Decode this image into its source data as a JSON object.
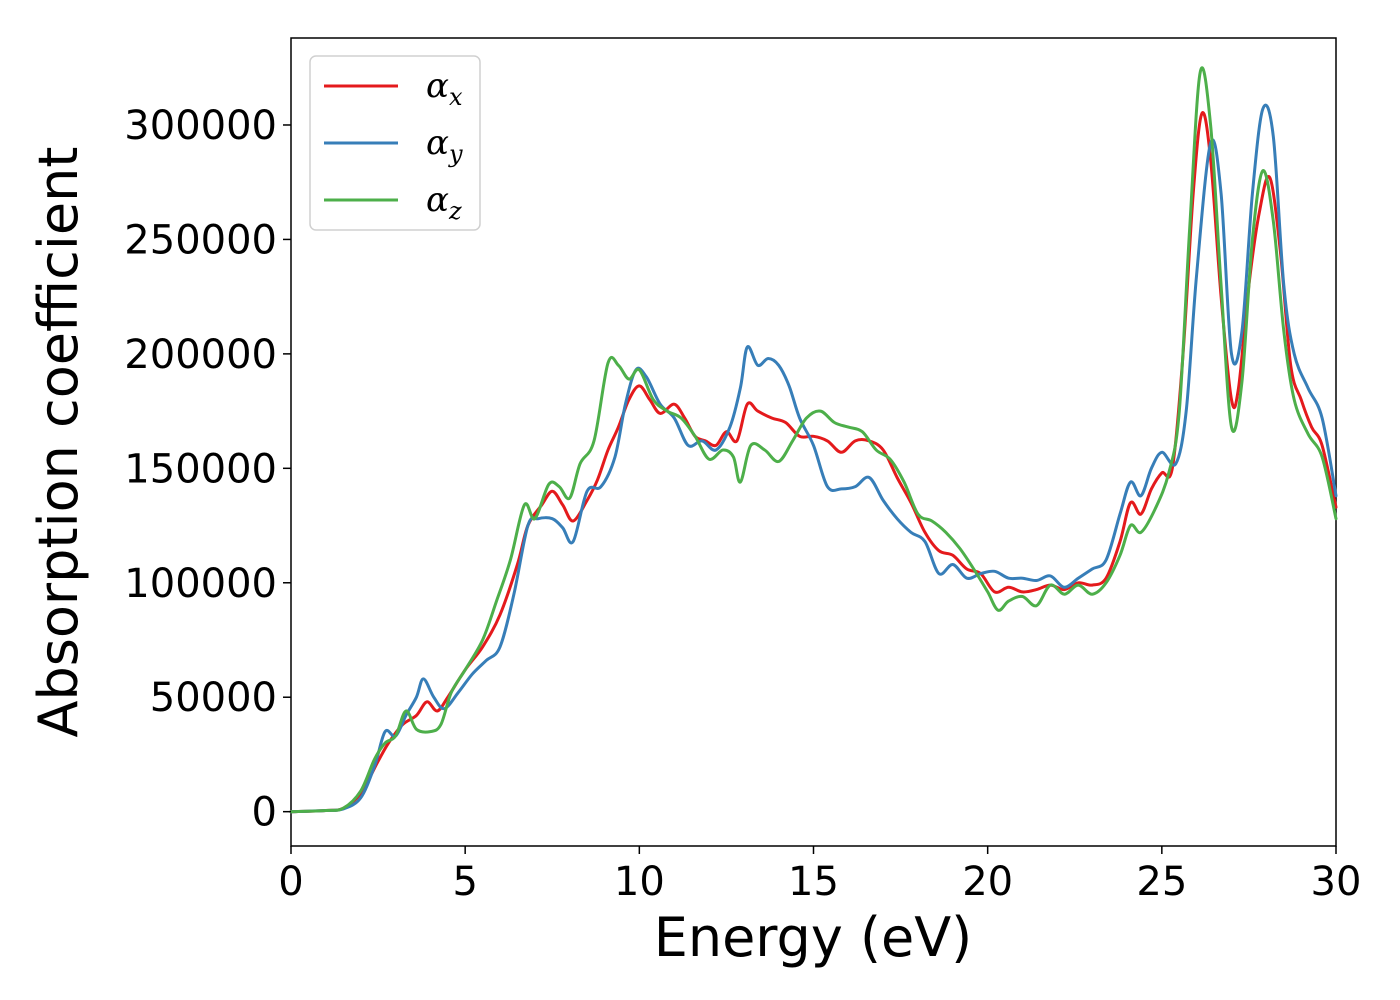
{
  "chart_data": {
    "type": "line",
    "title": "",
    "xlabel": "Energy (eV)",
    "ylabel": "Absorption coefficient",
    "xlim": [
      0,
      30
    ],
    "ylim": [
      -15000,
      338000
    ],
    "xticks": [
      0,
      5,
      10,
      15,
      20,
      25,
      30
    ],
    "yticks": [
      0,
      50000,
      100000,
      150000,
      200000,
      250000,
      300000
    ],
    "grid": false,
    "legend": "top-left",
    "series": [
      {
        "name": "α",
        "name_sub": "x",
        "color": "#e41a1c",
        "points": [
          [
            0,
            0
          ],
          [
            1,
            500
          ],
          [
            1.5,
            1500
          ],
          [
            2,
            8000
          ],
          [
            2.5,
            22000
          ],
          [
            2.8,
            30000
          ],
          [
            3.2,
            38000
          ],
          [
            3.6,
            42000
          ],
          [
            3.9,
            48000
          ],
          [
            4.2,
            44000
          ],
          [
            4.5,
            50000
          ],
          [
            5,
            62000
          ],
          [
            5.5,
            72000
          ],
          [
            6,
            86000
          ],
          [
            6.5,
            108000
          ],
          [
            6.8,
            125000
          ],
          [
            7.2,
            134000
          ],
          [
            7.5,
            140000
          ],
          [
            7.8,
            134000
          ],
          [
            8.1,
            127000
          ],
          [
            8.5,
            136000
          ],
          [
            8.8,
            145000
          ],
          [
            9.1,
            158000
          ],
          [
            9.4,
            168000
          ],
          [
            9.7,
            180000
          ],
          [
            10,
            186000
          ],
          [
            10.3,
            180000
          ],
          [
            10.6,
            174000
          ],
          [
            11,
            178000
          ],
          [
            11.3,
            172000
          ],
          [
            11.6,
            164000
          ],
          [
            11.9,
            162000
          ],
          [
            12.2,
            160000
          ],
          [
            12.5,
            166000
          ],
          [
            12.8,
            162000
          ],
          [
            13.1,
            178000
          ],
          [
            13.4,
            175000
          ],
          [
            13.8,
            172000
          ],
          [
            14.2,
            170000
          ],
          [
            14.6,
            164000
          ],
          [
            15,
            164000
          ],
          [
            15.4,
            162000
          ],
          [
            15.8,
            157000
          ],
          [
            16.2,
            162000
          ],
          [
            16.6,
            162000
          ],
          [
            17,
            158000
          ],
          [
            17.4,
            146000
          ],
          [
            17.8,
            135000
          ],
          [
            18.2,
            122000
          ],
          [
            18.6,
            114000
          ],
          [
            19,
            112000
          ],
          [
            19.4,
            106000
          ],
          [
            19.8,
            104000
          ],
          [
            20.2,
            96000
          ],
          [
            20.6,
            98000
          ],
          [
            21,
            96000
          ],
          [
            21.4,
            97000
          ],
          [
            21.8,
            99000
          ],
          [
            22.2,
            97000
          ],
          [
            22.6,
            100000
          ],
          [
            23,
            99000
          ],
          [
            23.4,
            102000
          ],
          [
            23.8,
            118000
          ],
          [
            24.1,
            135000
          ],
          [
            24.4,
            130000
          ],
          [
            24.7,
            141000
          ],
          [
            25,
            148000
          ],
          [
            25.3,
            150000
          ],
          [
            25.6,
            198000
          ],
          [
            25.9,
            270000
          ],
          [
            26.15,
            305000
          ],
          [
            26.4,
            285000
          ],
          [
            26.7,
            225000
          ],
          [
            27,
            180000
          ],
          [
            27.2,
            185000
          ],
          [
            27.5,
            230000
          ],
          [
            27.8,
            262000
          ],
          [
            28.1,
            277000
          ],
          [
            28.4,
            245000
          ],
          [
            28.7,
            195000
          ],
          [
            29,
            180000
          ],
          [
            29.3,
            168000
          ],
          [
            29.6,
            160000
          ],
          [
            30,
            133000
          ]
        ]
      },
      {
        "name": "α",
        "name_sub": "y",
        "color": "#377eb8",
        "points": [
          [
            0,
            0
          ],
          [
            1,
            500
          ],
          [
            1.5,
            1200
          ],
          [
            2,
            6000
          ],
          [
            2.4,
            20000
          ],
          [
            2.7,
            35000
          ],
          [
            3,
            33000
          ],
          [
            3.3,
            42000
          ],
          [
            3.6,
            50000
          ],
          [
            3.8,
            58000
          ],
          [
            4.1,
            50000
          ],
          [
            4.4,
            45000
          ],
          [
            4.8,
            52000
          ],
          [
            5.2,
            60000
          ],
          [
            5.6,
            66000
          ],
          [
            6,
            72000
          ],
          [
            6.4,
            95000
          ],
          [
            6.8,
            125000
          ],
          [
            7.1,
            128000
          ],
          [
            7.5,
            128000
          ],
          [
            7.8,
            124000
          ],
          [
            8.1,
            118000
          ],
          [
            8.5,
            140000
          ],
          [
            8.9,
            142000
          ],
          [
            9.3,
            155000
          ],
          [
            9.6,
            178000
          ],
          [
            9.9,
            193000
          ],
          [
            10.2,
            190000
          ],
          [
            10.6,
            178000
          ],
          [
            11,
            172000
          ],
          [
            11.4,
            160000
          ],
          [
            11.8,
            162000
          ],
          [
            12.2,
            158000
          ],
          [
            12.6,
            168000
          ],
          [
            12.9,
            185000
          ],
          [
            13.1,
            203000
          ],
          [
            13.4,
            195000
          ],
          [
            13.7,
            198000
          ],
          [
            14,
            195000
          ],
          [
            14.3,
            186000
          ],
          [
            14.6,
            172000
          ],
          [
            15,
            160000
          ],
          [
            15.4,
            142000
          ],
          [
            15.8,
            141000
          ],
          [
            16.2,
            142000
          ],
          [
            16.6,
            146000
          ],
          [
            17,
            136000
          ],
          [
            17.4,
            128000
          ],
          [
            17.8,
            122000
          ],
          [
            18.2,
            118000
          ],
          [
            18.6,
            104000
          ],
          [
            19,
            108000
          ],
          [
            19.4,
            102000
          ],
          [
            19.8,
            104000
          ],
          [
            20.2,
            105000
          ],
          [
            20.6,
            102000
          ],
          [
            21,
            102000
          ],
          [
            21.4,
            101000
          ],
          [
            21.8,
            103000
          ],
          [
            22.2,
            98000
          ],
          [
            22.6,
            102000
          ],
          [
            23,
            106000
          ],
          [
            23.4,
            110000
          ],
          [
            23.8,
            130000
          ],
          [
            24.1,
            144000
          ],
          [
            24.4,
            138000
          ],
          [
            24.7,
            150000
          ],
          [
            25,
            157000
          ],
          [
            25.4,
            152000
          ],
          [
            25.7,
            175000
          ],
          [
            26,
            235000
          ],
          [
            26.4,
            292000
          ],
          [
            26.7,
            270000
          ],
          [
            27,
            200000
          ],
          [
            27.3,
            210000
          ],
          [
            27.6,
            270000
          ],
          [
            27.9,
            307000
          ],
          [
            28.2,
            295000
          ],
          [
            28.5,
            230000
          ],
          [
            28.8,
            200000
          ],
          [
            29.2,
            185000
          ],
          [
            29.6,
            172000
          ],
          [
            30,
            138000
          ]
        ]
      },
      {
        "name": "α",
        "name_sub": "z",
        "color": "#4daf4a",
        "points": [
          [
            0,
            0
          ],
          [
            1,
            500
          ],
          [
            1.5,
            1500
          ],
          [
            2,
            9000
          ],
          [
            2.4,
            23000
          ],
          [
            2.7,
            30000
          ],
          [
            3,
            33000
          ],
          [
            3.3,
            44000
          ],
          [
            3.6,
            36000
          ],
          [
            4,
            35000
          ],
          [
            4.3,
            38000
          ],
          [
            4.6,
            52000
          ],
          [
            5,
            62000
          ],
          [
            5.5,
            75000
          ],
          [
            5.9,
            92000
          ],
          [
            6.3,
            110000
          ],
          [
            6.7,
            134000
          ],
          [
            7,
            128000
          ],
          [
            7.4,
            143000
          ],
          [
            7.7,
            142000
          ],
          [
            8,
            137000
          ],
          [
            8.3,
            152000
          ],
          [
            8.7,
            162000
          ],
          [
            9.1,
            196000
          ],
          [
            9.4,
            195000
          ],
          [
            9.7,
            189000
          ],
          [
            10,
            193000
          ],
          [
            10.4,
            180000
          ],
          [
            10.8,
            175000
          ],
          [
            11.2,
            172000
          ],
          [
            11.6,
            164000
          ],
          [
            12,
            154000
          ],
          [
            12.4,
            158000
          ],
          [
            12.7,
            155000
          ],
          [
            12.9,
            144000
          ],
          [
            13.2,
            160000
          ],
          [
            13.6,
            158000
          ],
          [
            14,
            153000
          ],
          [
            14.4,
            162000
          ],
          [
            14.8,
            172000
          ],
          [
            15.2,
            175000
          ],
          [
            15.6,
            170000
          ],
          [
            16,
            168000
          ],
          [
            16.4,
            166000
          ],
          [
            16.8,
            158000
          ],
          [
            17.2,
            154000
          ],
          [
            17.6,
            144000
          ],
          [
            18,
            130000
          ],
          [
            18.4,
            127000
          ],
          [
            18.8,
            122000
          ],
          [
            19.2,
            115000
          ],
          [
            19.6,
            106000
          ],
          [
            20,
            96000
          ],
          [
            20.3,
            88000
          ],
          [
            20.6,
            92000
          ],
          [
            21,
            94000
          ],
          [
            21.4,
            90000
          ],
          [
            21.8,
            99000
          ],
          [
            22.2,
            95000
          ],
          [
            22.6,
            99000
          ],
          [
            23,
            95000
          ],
          [
            23.4,
            100000
          ],
          [
            23.8,
            112000
          ],
          [
            24.1,
            125000
          ],
          [
            24.4,
            122000
          ],
          [
            24.8,
            132000
          ],
          [
            25.2,
            148000
          ],
          [
            25.5,
            175000
          ],
          [
            25.8,
            255000
          ],
          [
            26.1,
            323000
          ],
          [
            26.4,
            300000
          ],
          [
            26.7,
            230000
          ],
          [
            27,
            168000
          ],
          [
            27.3,
            188000
          ],
          [
            27.6,
            250000
          ],
          [
            27.9,
            280000
          ],
          [
            28.2,
            258000
          ],
          [
            28.5,
            210000
          ],
          [
            28.8,
            180000
          ],
          [
            29.2,
            165000
          ],
          [
            29.6,
            155000
          ],
          [
            30,
            128000
          ]
        ]
      }
    ]
  }
}
